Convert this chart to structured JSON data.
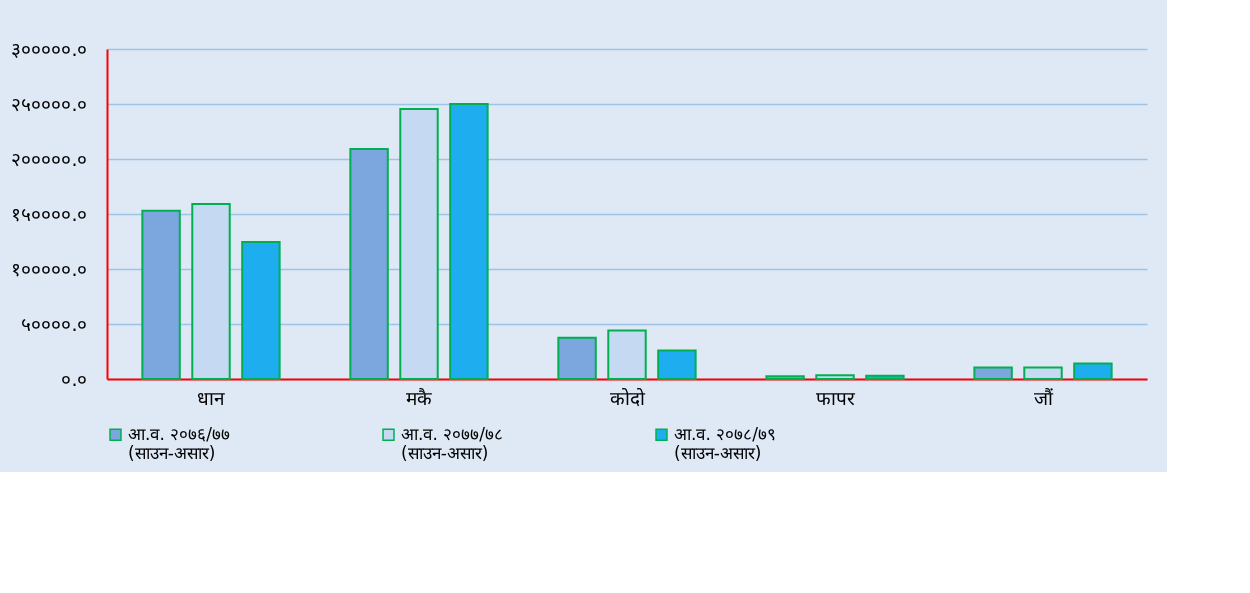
{
  "chart_data": {
    "type": "bar",
    "categories": [
      "धान",
      "मकै",
      "कोदो",
      "फापर",
      "जौं"
    ],
    "series": [
      {
        "name": "आ.व. २०७६/७७\n(साउन-असार)",
        "color": "#7ba7de",
        "values": [
          153000,
          209000,
          37500,
          2500,
          10500
        ]
      },
      {
        "name": "आ.व. २०७७/७८\n(साउन-असार)",
        "color": "#c5daf2",
        "values": [
          159000,
          245500,
          44000,
          3500,
          10500
        ]
      },
      {
        "name": "आ.व. २०७८/७९\n(साउन-असार)",
        "color": "#1eaef0",
        "values": [
          124500,
          250000,
          26000,
          3000,
          14000
        ]
      }
    ],
    "ylim": [
      0,
      300000
    ],
    "yticks": [
      {
        "value": 0,
        "label": "०.०"
      },
      {
        "value": 50000,
        "label": "५००००.०"
      },
      {
        "value": 100000,
        "label": "१०००००.०"
      },
      {
        "value": 150000,
        "label": "१५००००.०"
      },
      {
        "value": 200000,
        "label": "२०००००.०"
      },
      {
        "value": 250000,
        "label": "२५००००.०"
      },
      {
        "value": 300000,
        "label": "३०००००.०"
      }
    ],
    "grid": "y",
    "legend": "bottom"
  }
}
